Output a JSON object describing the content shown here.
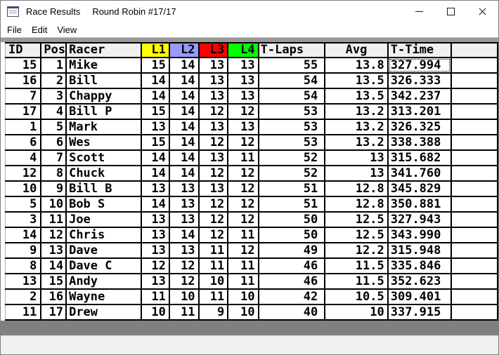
{
  "window": {
    "title_primary": "Race Results",
    "title_secondary": "Round Robin #17/17"
  },
  "menu": {
    "items": [
      {
        "label": "File"
      },
      {
        "label": "Edit"
      },
      {
        "label": "View"
      }
    ]
  },
  "icons": {
    "app_icon": "form-window-icon",
    "minimize": "minimize-dash",
    "maximize": "maximize-square",
    "close": "close-x"
  },
  "colors": {
    "lap1_bg": "#ffff00",
    "lap2_bg": "#9999ff",
    "lap3_bg": "#ff0000",
    "lap4_bg": "#00ff00",
    "header_bg": "#f0f0f0",
    "grid_line": "#000000",
    "bottom_bar": "#808080"
  },
  "table": {
    "columns": [
      {
        "key": "id",
        "label": "ID"
      },
      {
        "key": "pos",
        "label": "Pos"
      },
      {
        "key": "racer",
        "label": "Racer"
      },
      {
        "key": "l1",
        "label": "L1",
        "bg": "#ffff00"
      },
      {
        "key": "l2",
        "label": "L2",
        "bg": "#9999ff"
      },
      {
        "key": "l3",
        "label": "L3",
        "bg": "#ff0000"
      },
      {
        "key": "l4",
        "label": "L4",
        "bg": "#00ff00"
      },
      {
        "key": "tlaps",
        "label": "T-Laps"
      },
      {
        "key": "avg",
        "label": "Avg"
      },
      {
        "key": "ttime",
        "label": "T-Time"
      },
      {
        "key": "spacer",
        "label": ""
      }
    ],
    "selected_cell": {
      "row_index": 0,
      "column": "ttime"
    },
    "rows": [
      {
        "id": "15",
        "pos": "1",
        "racer": "Mike",
        "l1": "15",
        "l2": "14",
        "l3": "13",
        "l4": "13",
        "tlaps": "55",
        "avg": "13.8",
        "ttime": "327.994"
      },
      {
        "id": "16",
        "pos": "2",
        "racer": "Bill",
        "l1": "14",
        "l2": "14",
        "l3": "13",
        "l4": "13",
        "tlaps": "54",
        "avg": "13.5",
        "ttime": "326.333"
      },
      {
        "id": "7",
        "pos": "3",
        "racer": "Chappy",
        "l1": "14",
        "l2": "14",
        "l3": "13",
        "l4": "13",
        "tlaps": "54",
        "avg": "13.5",
        "ttime": "342.237"
      },
      {
        "id": "17",
        "pos": "4",
        "racer": "Bill P",
        "l1": "15",
        "l2": "14",
        "l3": "12",
        "l4": "12",
        "tlaps": "53",
        "avg": "13.2",
        "ttime": "313.201"
      },
      {
        "id": "1",
        "pos": "5",
        "racer": "Mark",
        "l1": "13",
        "l2": "14",
        "l3": "13",
        "l4": "13",
        "tlaps": "53",
        "avg": "13.2",
        "ttime": "326.325"
      },
      {
        "id": "6",
        "pos": "6",
        "racer": "Wes",
        "l1": "15",
        "l2": "14",
        "l3": "12",
        "l4": "12",
        "tlaps": "53",
        "avg": "13.2",
        "ttime": "338.388"
      },
      {
        "id": "4",
        "pos": "7",
        "racer": "Scott",
        "l1": "14",
        "l2": "14",
        "l3": "13",
        "l4": "11",
        "tlaps": "52",
        "avg": "13",
        "ttime": "315.682"
      },
      {
        "id": "12",
        "pos": "8",
        "racer": "Chuck",
        "l1": "14",
        "l2": "14",
        "l3": "12",
        "l4": "12",
        "tlaps": "52",
        "avg": "13",
        "ttime": "341.760"
      },
      {
        "id": "10",
        "pos": "9",
        "racer": "Bill B",
        "l1": "13",
        "l2": "13",
        "l3": "13",
        "l4": "12",
        "tlaps": "51",
        "avg": "12.8",
        "ttime": "345.829"
      },
      {
        "id": "5",
        "pos": "10",
        "racer": "Bob S",
        "l1": "14",
        "l2": "13",
        "l3": "12",
        "l4": "12",
        "tlaps": "51",
        "avg": "12.8",
        "ttime": "350.881"
      },
      {
        "id": "3",
        "pos": "11",
        "racer": "Joe",
        "l1": "13",
        "l2": "13",
        "l3": "12",
        "l4": "12",
        "tlaps": "50",
        "avg": "12.5",
        "ttime": "327.943"
      },
      {
        "id": "14",
        "pos": "12",
        "racer": "Chris",
        "l1": "13",
        "l2": "14",
        "l3": "12",
        "l4": "11",
        "tlaps": "50",
        "avg": "12.5",
        "ttime": "343.990"
      },
      {
        "id": "9",
        "pos": "13",
        "racer": "Dave",
        "l1": "13",
        "l2": "13",
        "l3": "11",
        "l4": "12",
        "tlaps": "49",
        "avg": "12.2",
        "ttime": "315.948"
      },
      {
        "id": "8",
        "pos": "14",
        "racer": "Dave C",
        "l1": "12",
        "l2": "12",
        "l3": "11",
        "l4": "11",
        "tlaps": "46",
        "avg": "11.5",
        "ttime": "335.846"
      },
      {
        "id": "13",
        "pos": "15",
        "racer": "Andy",
        "l1": "13",
        "l2": "12",
        "l3": "10",
        "l4": "11",
        "tlaps": "46",
        "avg": "11.5",
        "ttime": "352.623"
      },
      {
        "id": "2",
        "pos": "16",
        "racer": "Wayne",
        "l1": "11",
        "l2": "10",
        "l3": "11",
        "l4": "10",
        "tlaps": "42",
        "avg": "10.5",
        "ttime": "309.401"
      },
      {
        "id": "11",
        "pos": "17",
        "racer": "Drew",
        "l1": "10",
        "l2": "11",
        "l3": "9",
        "l4": "10",
        "tlaps": "40",
        "avg": "10",
        "ttime": "337.915"
      }
    ]
  }
}
